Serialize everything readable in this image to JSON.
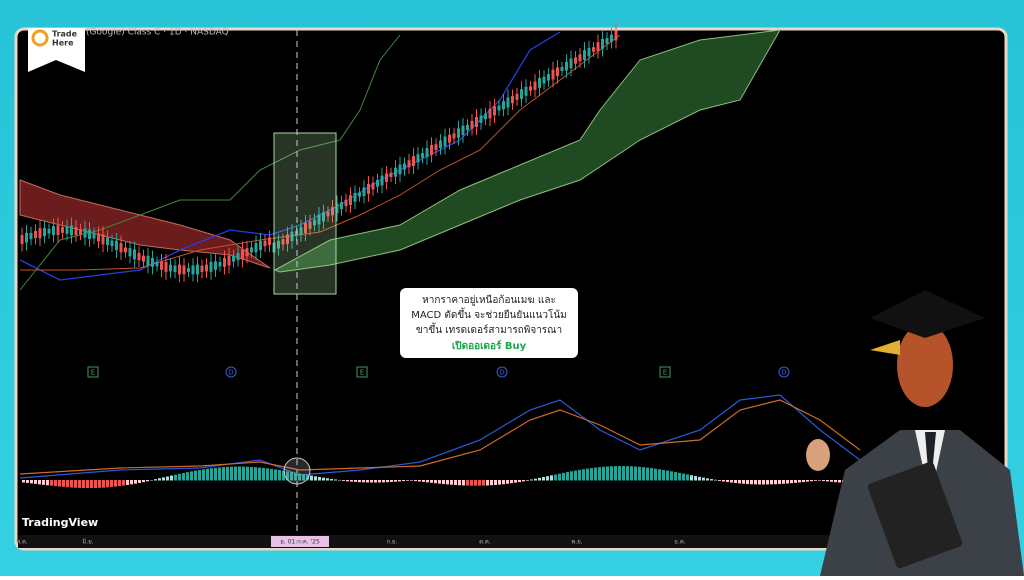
{
  "logo": {
    "line1": "Trade",
    "line2": "Here"
  },
  "chart": {
    "symbol": "(Google) Class C · 1D · NASDAQ",
    "brand": "TradingView",
    "events": [
      "E",
      "D",
      "E",
      "D",
      "E",
      "D"
    ],
    "time_labels": [
      "พ.ค.",
      "มิ.ย.",
      "อ. 01 ก.ค. '25",
      "ส.ค.",
      "ก.ย.",
      "ต.ค.",
      "พ.ย.",
      "ธ.ค."
    ]
  },
  "callout": {
    "lines": [
      "หากราคาอยู่เหนือก้อนเมฆ และ",
      "MACD ตัดขึ้น จะช่วยยืนยันแนวโน้ม",
      "ขาขึ้น เทรดเดอร์สามารถพิจารณา"
    ],
    "highlight": "เปิดออเดอร์ Buy"
  }
}
